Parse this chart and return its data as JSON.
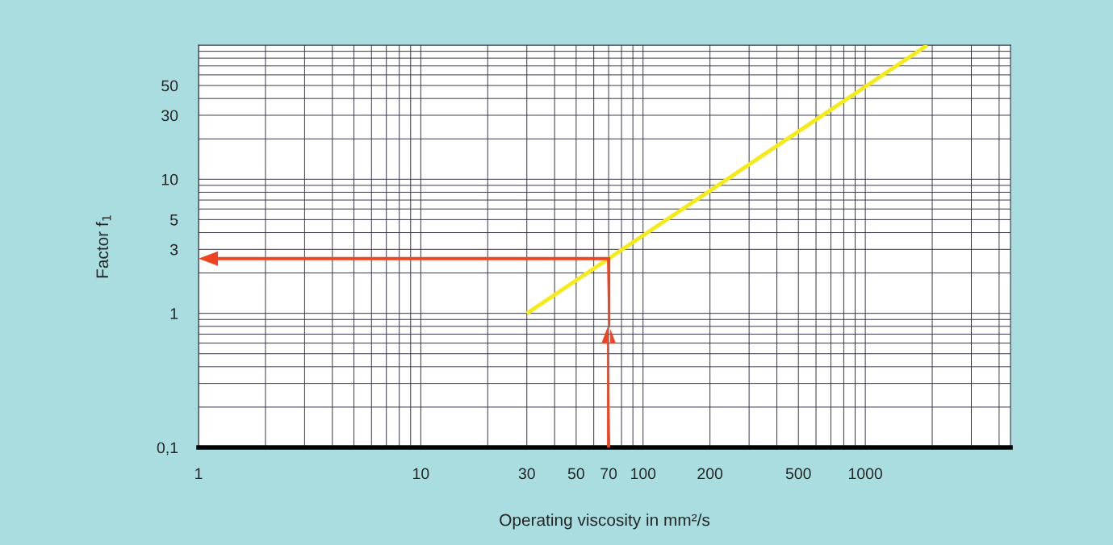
{
  "chart_data": {
    "type": "line",
    "xlabel": "Operating viscosity in mm²/s",
    "ylabel": "Factor f$_{1}$",
    "log": "xy",
    "grid": true,
    "legend": false,
    "marker": "none",
    "line_style": "solid",
    "xlim": [
      1,
      4500
    ],
    "ylim": [
      0.1,
      100
    ],
    "xticks": [
      1,
      10,
      30,
      50,
      70,
      100,
      200,
      500,
      1000
    ],
    "yticks": [
      {
        "value": 0.1,
        "label": "0,1"
      },
      1,
      3,
      5,
      10,
      30,
      50
    ],
    "series": [
      {
        "x": [
          30,
          1900
        ],
        "values": [
          1,
          100
        ],
        "color": "#f5ea1a"
      }
    ]
  }
}
